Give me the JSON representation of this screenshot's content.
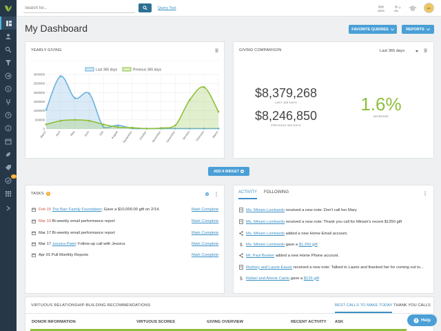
{
  "sidebar": {
    "more_label": "more",
    "notification_badge": "12"
  },
  "topbar": {
    "search_placeholder": "Search for...",
    "query_link": "Query Tool",
    "avatar_text": "pic"
  },
  "page": {
    "title": "My Dashboard",
    "favorite_queries_label": "FAVORITE QUERIES",
    "reports_label": "REPORTS"
  },
  "yearly_giving": {
    "title": "YEARLY GIVING",
    "chart_data": {
      "type": "area",
      "title": "",
      "categories": [
        "March",
        "April",
        "May",
        "June",
        "July",
        "August",
        "September",
        "October",
        "November",
        "December",
        "January",
        "February",
        "March"
      ],
      "ylabel": "",
      "ylim": [
        0,
        3000000
      ],
      "yticks": [
        "3000000",
        "2500000",
        "2000000",
        "1500000",
        "1000000",
        "500000",
        "0"
      ],
      "legend_position": "top-center",
      "series": [
        {
          "name": "Last 365 days",
          "color": "#6ab0de",
          "values": [
            1050000,
            2900000,
            1700000,
            1950000,
            100000,
            200000,
            30000,
            20000,
            20000,
            20000,
            20000,
            20000,
            20000
          ]
        },
        {
          "name": "Previous 365 days",
          "color": "#8dbf3a",
          "values": [
            250000,
            450000,
            500000,
            450000,
            250000,
            100000,
            70000,
            20000,
            50000,
            200000,
            1600000,
            2300000,
            950000
          ]
        }
      ]
    }
  },
  "giving_comparison": {
    "title": "GIVING COMPARISON",
    "range_selected": "Last 365 days",
    "last_value": "$8,379,268",
    "last_label": "LAST 365 DAYS",
    "prev_value": "$8,246,850",
    "prev_label": "PREVIOUS 365 DAYS",
    "increase_value": "1.6%",
    "increase_label": "INCREASE"
  },
  "add_widget_label": "ADD A WIDGET",
  "tasks": {
    "title": "TASKS",
    "badge": "5",
    "mark_label": "Mark Complete",
    "items": [
      {
        "date": "Feb 15",
        "link": "The Barr Family Foundation",
        "text": ": Gave a $10,000.00 gift on 2/14.",
        "overdue": true
      },
      {
        "date": "Mar 10",
        "link": "",
        "text": " Bi-weekly email performance report",
        "overdue": true
      },
      {
        "date": "Mar 17",
        "link": "",
        "text": " Bi-weekly email performance report",
        "overdue": false
      },
      {
        "date": "Mar 17",
        "link": "Jessica Patel",
        "text": ": Follow-up call with Jessica",
        "overdue": false
      },
      {
        "date": "Apr 01",
        "link": "",
        "text": " Pull Monthly Reports",
        "overdue": false
      }
    ]
  },
  "activity": {
    "tab_activity": "ACTIVITY",
    "tab_following": "FOLLOWING",
    "items": [
      {
        "icon": "note",
        "link": "Ms. Miriam Lombardo",
        "text": " received a new note: Don't call her Mary",
        "link2": ""
      },
      {
        "icon": "note",
        "link": "Ms. Miriam Lombardo",
        "text": " received a new note: Thank you call for Miriam's recent $1250 gift",
        "link2": ""
      },
      {
        "icon": "share",
        "link": "Ms. Miriam Lombardo",
        "text": " added a new Home Email account.",
        "link2": ""
      },
      {
        "icon": "dollar",
        "link": "Ms. Miriam Lombardo",
        "text": " gave a ",
        "link2": "$1,250 gift"
      },
      {
        "icon": "share",
        "link": "Mr. Paul Booker",
        "text": " added a new Home Phone account.",
        "link2": ""
      },
      {
        "icon": "note",
        "link": "Rodney and Laurie Eason",
        "text": " received a new note: Talked to Laurie and thanked her for coming out to...",
        "link2": ""
      },
      {
        "icon": "dollar",
        "link": "Rafael and Arlene Cantu",
        "text": " gave a ",
        "link2": "$125 gift"
      }
    ]
  },
  "recommendations": {
    "title": "VIRTUOUS RELATIONSHIP-BUILDING RECOMMENDATIONS",
    "tab_best_calls": "BEST CALLS TO MAKE TODAY",
    "tab_thank_you": "THANK YOU CALLS",
    "columns": [
      "DONOR INFORMATION",
      "VIRTUOUS SCORES",
      "GIVING OVERVIEW",
      "RECENT ACTIVITY",
      "ASK"
    ]
  },
  "help_label": "Help"
}
